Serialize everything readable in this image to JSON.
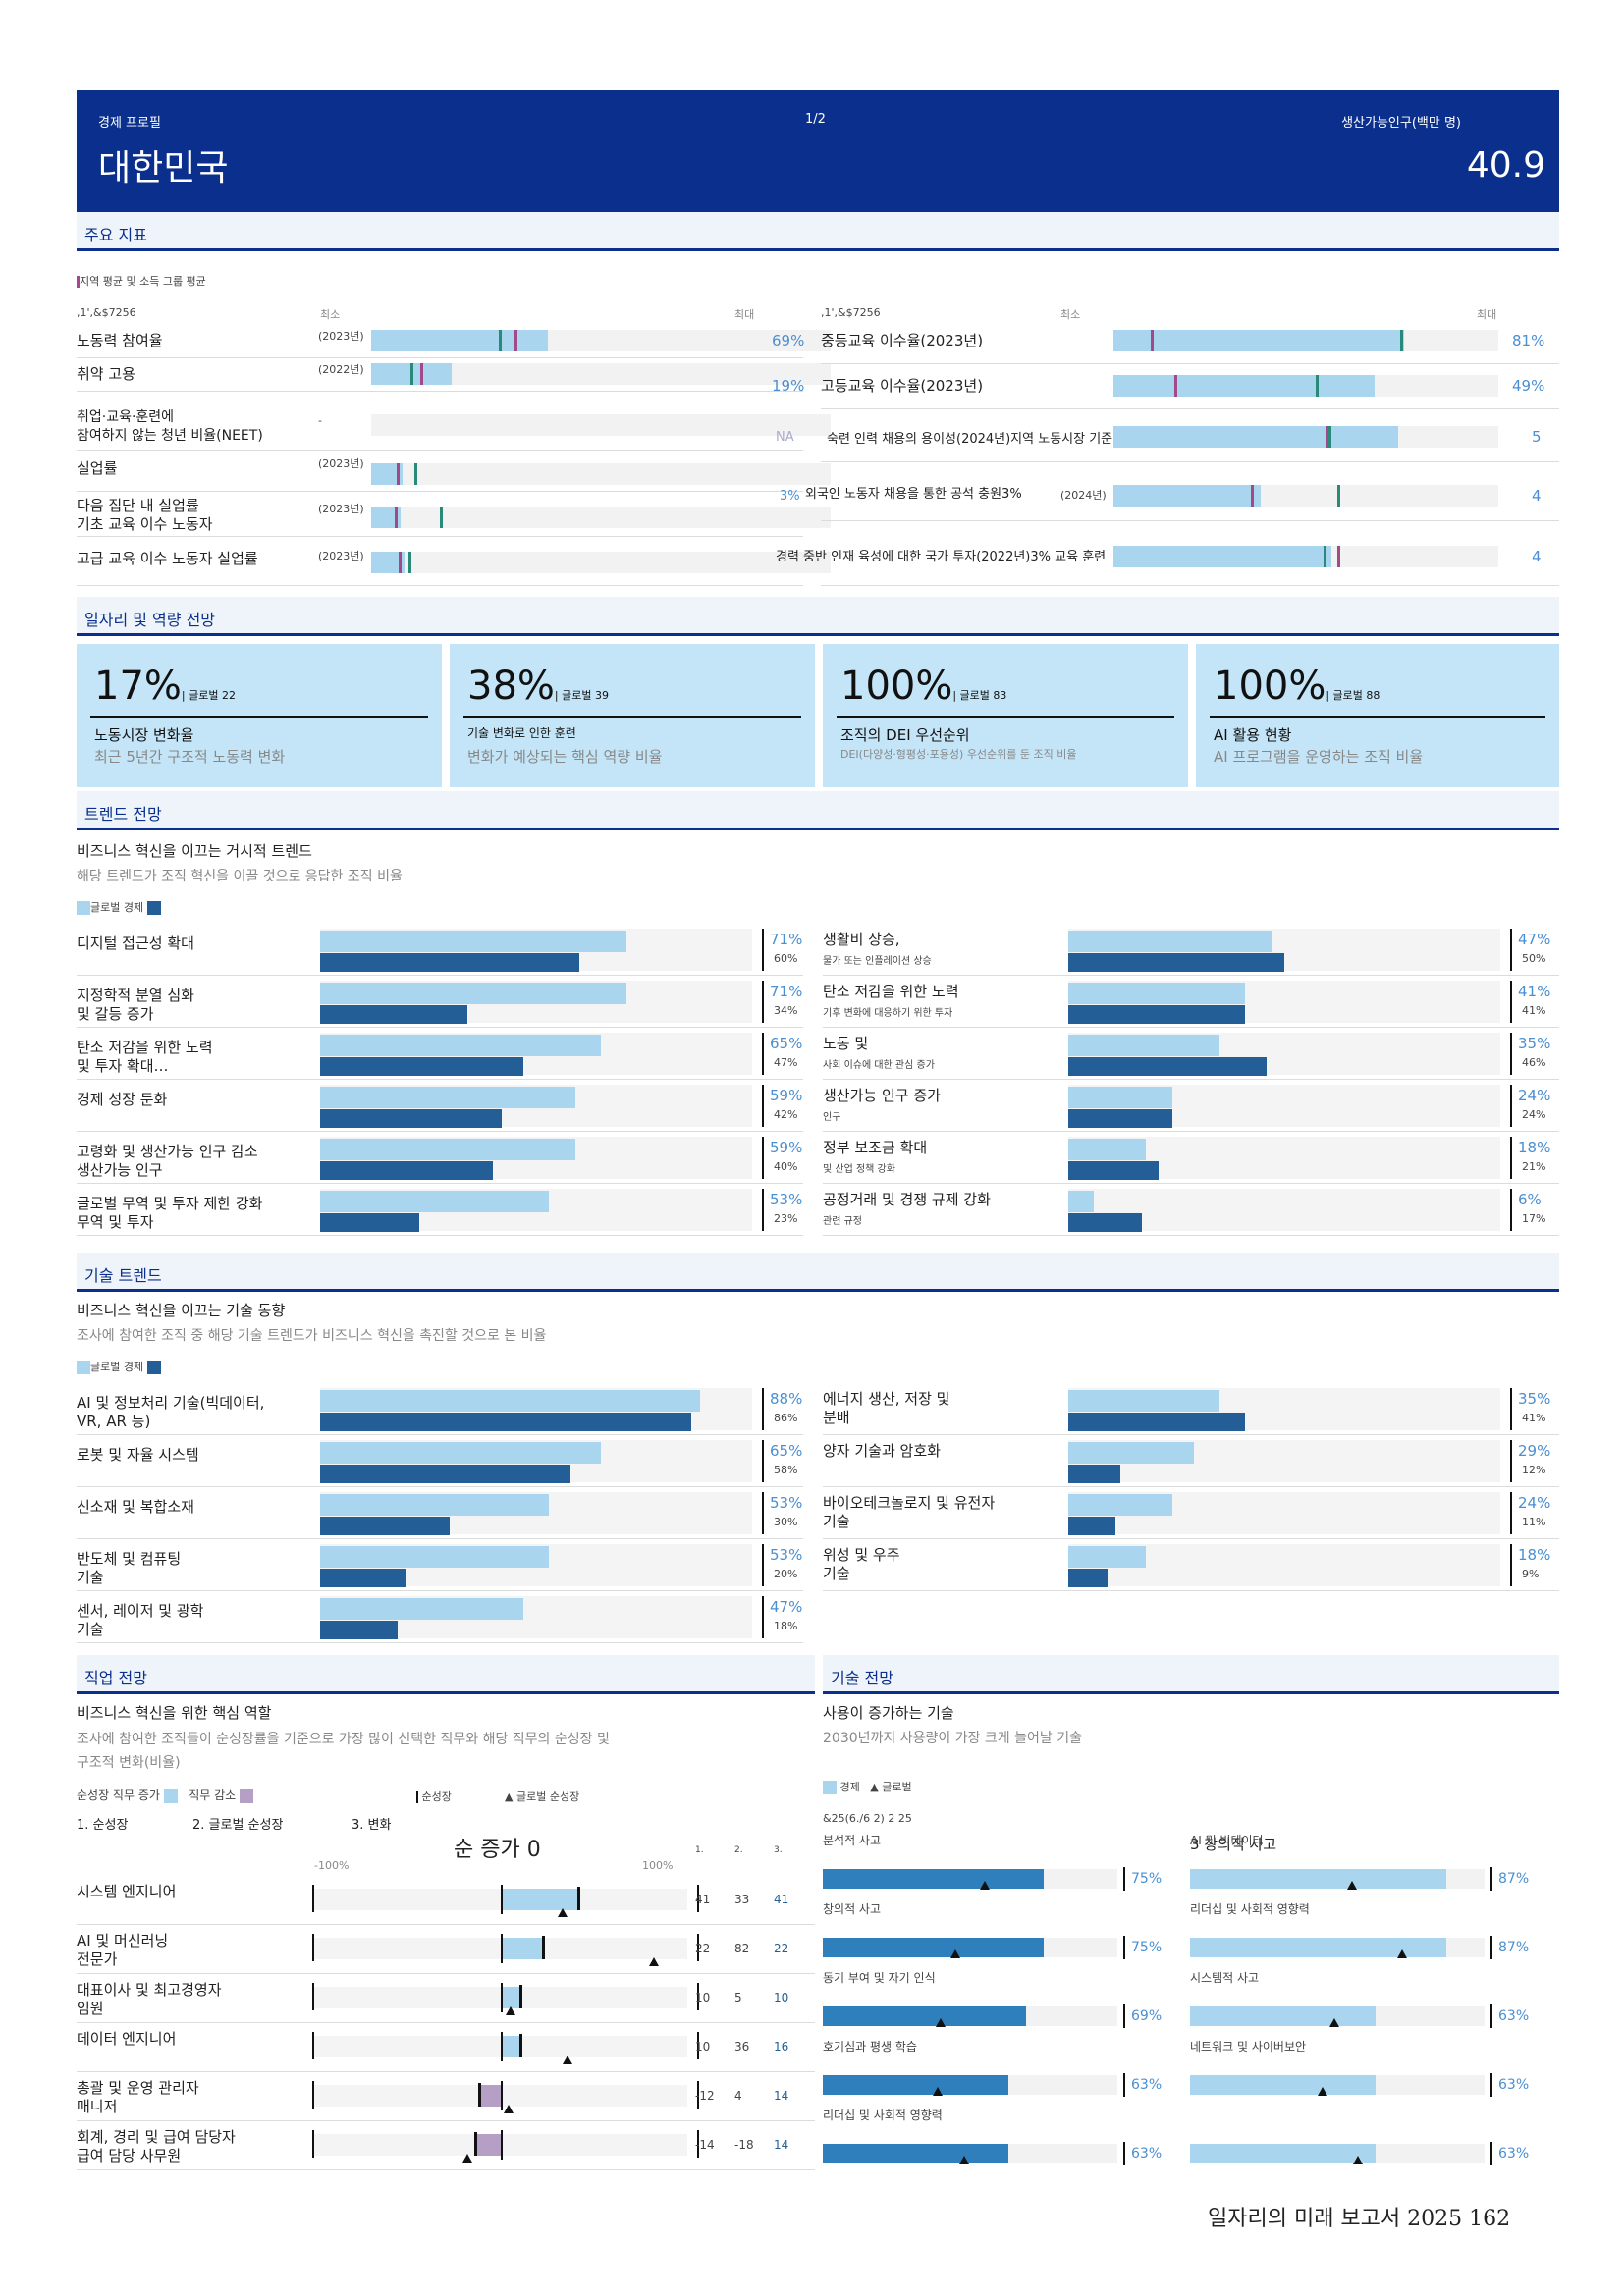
{
  "header": {
    "overline": "경제 프로필",
    "page": "1/2",
    "metric_label": "생산가능인구(백만 명)",
    "country": "대한민국",
    "metric_value": "40.9"
  },
  "sections": {
    "key_indicators": "주요 지표",
    "jobs_outlook": "일자리 및 역량 전망",
    "trends": "트렌드 전망",
    "tech_trends": "기술 트렌드",
    "occupation": "직업 전망",
    "skills": "기술 전망"
  },
  "indicators": {
    "legend": "지역 평균 및 소득 그룹 평균",
    "col_code": ",1',&$7256",
    "min_label": "최소",
    "max_label": "최대",
    "left": [
      {
        "label": "노동력 참여율",
        "year": "(2023년)",
        "value": "69%"
      },
      {
        "label": "취약 고용",
        "year": "(2022년)",
        "value": "19%"
      },
      {
        "label": "취업·교육·훈련에\n참여하지 않는 청년 비율(NEET)",
        "year": "-",
        "value": "NA"
      },
      {
        "label": "실업률",
        "year": "(2023년)",
        "value": "3%"
      },
      {
        "label": "다음 집단 내 실업률\n기초 교육 이수 노동자",
        "year": "(2023년)",
        "value": ""
      },
      {
        "label": "고급 교육 이수 노동자 실업률",
        "year": "(2023년)",
        "value": ""
      }
    ],
    "right": [
      {
        "label": "중등교육 이수율(2023년)",
        "value": "81%"
      },
      {
        "label": "고등교육 이수율(2023년)",
        "value": "49%"
      },
      {
        "label": "숙련 인력 채용의 용이성(2024년)지역 노동시장 기준",
        "value": "5"
      },
      {
        "label": "외국인 노동자 채용을 통한 공석 충원3%",
        "year": "(2024년)",
        "value": "4"
      },
      {
        "label": "경력 중반 인재 육성에 대한 국가 투자(2022년)3% 교육 훈련",
        "value": "4"
      }
    ]
  },
  "cards": [
    {
      "big": "17%",
      "global": "| 글로벌 22",
      "label": "노동시장 변화율",
      "desc": "최근 5년간 구조적 노동력 변화"
    },
    {
      "big": "38%",
      "global": "| 글로벌 39",
      "label": "기술 변화로 인한 훈련",
      "desc": "변화가 예상되는 핵심 역량 비율"
    },
    {
      "big": "100%",
      "global": "| 글로벌 83",
      "label": "조직의 DEI 우선순위",
      "desc": "DEI(다양성·형평성·포용성) 우선순위를 둔 조직 비율"
    },
    {
      "big": "100%",
      "global": "| 글로벌 88",
      "label": "AI 활용 현황",
      "desc": "AI 프로그램을 운영하는 조직 비율"
    }
  ],
  "trends": {
    "heading": "비즈니스 혁신을 이끄는 거시적 트렌드",
    "subheading": "해당 트렌드가 조직 혁신을 이끌 것으로 응답한 조직 비율",
    "legend": "글로벌 경제",
    "left": [
      {
        "label": "디지털 접근성 확대",
        "global": "71%",
        "economy": "60%"
      },
      {
        "label": "지정학적 분열 심화\n및 갈등 증가",
        "global": "71%",
        "economy": "34%"
      },
      {
        "label": "탄소 저감을 위한 노력\n및 투자 확대…",
        "global": "65%",
        "economy": "47%"
      },
      {
        "label": "경제 성장 둔화",
        "global": "59%",
        "economy": "42%"
      },
      {
        "label": "고령화 및 생산가능 인구 감소\n생산가능 인구",
        "global": "59%",
        "economy": "40%"
      },
      {
        "label": "글로벌 무역 및 투자 제한 강화\n무역 및 투자",
        "global": "53%",
        "economy": "23%"
      }
    ],
    "right": [
      {
        "label": "생활비 상승,",
        "sublabel": "물가 또는 인플레이션 상승",
        "global": "47%",
        "economy": "50%"
      },
      {
        "label": "탄소 저감을 위한 노력",
        "sublabel": "기후 변화에 대응하기 위한 투자",
        "global": "41%",
        "economy": "41%"
      },
      {
        "label": "노동 및",
        "sublabel": "사회 이슈에 대한 관심 증가",
        "global": "35%",
        "economy": "46%"
      },
      {
        "label": "생산가능 인구 증가",
        "sublabel": "인구",
        "global": "24%",
        "economy": "24%"
      },
      {
        "label": "정부 보조금 확대",
        "sublabel": "및 산업 정책 강화",
        "global": "18%",
        "economy": "21%"
      },
      {
        "label": "공정거래 및 경쟁 규제 강화",
        "sublabel": "관련 규정",
        "global": "6%",
        "economy": "17%"
      }
    ]
  },
  "tech": {
    "heading": "비즈니스 혁신을 이끄는 기술 동향",
    "subheading": "조사에 참여한 조직 중 해당 기술 트렌드가 비즈니스 혁신을 촉진할 것으로 본 비율",
    "legend": "글로벌 경제",
    "left": [
      {
        "label": "AI 및 정보처리 기술(빅데이터,\nVR, AR 등)",
        "global": "88%",
        "economy": "86%"
      },
      {
        "label": "로봇 및 자율 시스템",
        "global": "65%",
        "economy": "58%"
      },
      {
        "label": "신소재 및 복합소재",
        "global": "53%",
        "economy": "30%"
      },
      {
        "label": "반도체 및 컴퓨팅\n기술",
        "global": "53%",
        "economy": "20%"
      },
      {
        "label": "센서, 레이저 및 광학\n기술",
        "global": "47%",
        "economy": "18%"
      }
    ],
    "right": [
      {
        "label": "에너지 생산, 저장 및\n분배",
        "global": "35%",
        "economy": "41%"
      },
      {
        "label": "양자 기술과 암호화",
        "global": "29%",
        "economy": "12%"
      },
      {
        "label": "바이오테크놀로지 및 유전자\n기술",
        "global": "24%",
        "economy": "11%"
      },
      {
        "label": "위성 및 우주\n기술",
        "global": "18%",
        "economy": "9%"
      }
    ]
  },
  "occupation": {
    "heading": "비즈니스 혁신을 위한 핵심 역할",
    "subheading": "조사에 참여한 조직들이 순성장률을 기준으로 가장 많이 선택한 직무와 해당 직무의 순성장 및\n구조적 변화(비율)",
    "legend_growth": "순성장 직무 증가",
    "legend_decline": "직무 감소",
    "legend_net": "순성장",
    "legend_global": "글로벌 순성장",
    "col1": "1. 순성장",
    "col2": "2. 글로벌 순성장",
    "col3": "3. 변화",
    "axis_title": "순 증가 0",
    "axis_min": "-100%",
    "axis_max": "100%",
    "col_nums": [
      "1.",
      "2.",
      "3."
    ],
    "rows": [
      {
        "label": "시스템 엔지니어",
        "c1": "41",
        "c2": "33",
        "c3": "41",
        "net": 41,
        "global": 33
      },
      {
        "label": "AI 및 머신러닝\n전문가",
        "c1": "22",
        "c2": "82",
        "c3": "22",
        "net": 22,
        "global": 82
      },
      {
        "label": "대표이사 및 최고경영자\n임원",
        "c1": "10",
        "c2": "5",
        "c3": "10",
        "net": 10,
        "global": 5
      },
      {
        "label": "데이터 엔지니어",
        "c1": "10",
        "c2": "36",
        "c3": "16",
        "net": 10,
        "global": 36
      },
      {
        "label": "총괄 및 운영 관리자\n매니저",
        "c1": "-12",
        "c2": "4",
        "c3": "14",
        "net": -12,
        "global": 4
      },
      {
        "label": "회계, 경리 및 급여 담당자\n급여 담당 사무원",
        "c1": "-14",
        "c2": "-18",
        "c3": "14",
        "net": -14,
        "global": -18
      }
    ]
  },
  "skills": {
    "heading": "사용이 증가하는 기술",
    "subheading": "2030년까지 사용량이 가장 크게 늘어날 기술",
    "legend_economy": "경제",
    "legend_global": "글로벌",
    "code": "&25(6./6 2) 2 25",
    "left": [
      {
        "label": "분석적 사고",
        "value": "75%",
        "num": 75,
        "global": 55
      },
      {
        "label": "창의적 사고",
        "value": "75%",
        "num": 75,
        "global": 45
      },
      {
        "label": "동기 부여 및 자기 인식",
        "value": "69%",
        "num": 69,
        "global": 40
      },
      {
        "label": "호기심과 평생 학습",
        "value": "63%",
        "num": 63,
        "global": 39
      },
      {
        "label": "리더십 및 사회적 영향력",
        "value": "63%",
        "num": 63,
        "global": 48
      }
    ],
    "right_title": "3 창의적 사고",
    "right": [
      {
        "label": "AI 및 빅데이터",
        "value": "87%",
        "num": 87,
        "global": 55
      },
      {
        "label": "리더십 및 사회적 영향력",
        "value": "87%",
        "num": 87,
        "global": 72
      },
      {
        "label": "시스템적 사고",
        "value": "63%",
        "num": 63,
        "global": 49
      },
      {
        "label": "네트워크 및 사이버보안",
        "value": "63%",
        "num": 63,
        "global": 45
      },
      {
        "label": "",
        "value": "63%",
        "num": 63,
        "global": 57
      }
    ]
  },
  "footer": "일자리의 미래 보고서 2025 162"
}
